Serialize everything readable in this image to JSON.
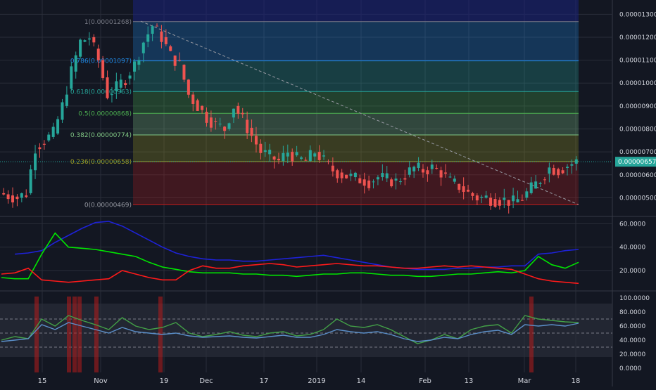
{
  "chart_data": [
    {
      "type": "candlestick",
      "title": "",
      "xlabel": "",
      "ylabel": "",
      "ylim": [
        4.4e-06,
        1.35e-05
      ],
      "y_ticks": [
        "0.00001300",
        "0.00001200",
        "0.00001100",
        "0.00001000",
        "0.00000900",
        "0.00000800",
        "0.00000700",
        "0.00000600",
        "0.00000500"
      ],
      "y_tick_values": [
        1.3e-05,
        1.2e-05,
        1.1e-05,
        1e-05,
        9e-06,
        8e-06,
        7e-06,
        6e-06,
        5e-06
      ],
      "x_ticks": [
        "15",
        "Nov",
        "19",
        "Dec",
        "17",
        "2019",
        "14",
        "Feb",
        "13",
        "Mar",
        "18"
      ],
      "last_price_label": "0.00000657",
      "last_price": 6.57e-06,
      "close_path": [
        5.2e-06,
        5.1e-06,
        5e-06,
        5.2e-06,
        7.2e-06,
        7.5e-06,
        7.8e-06,
        9e-06,
        1.05e-05,
        1.18e-05,
        1.2e-05,
        1.1e-05,
        9.5e-06,
        9.8e-06,
        1.02e-05,
        1.08e-05,
        1.18e-05,
        1.25e-05,
        1.2e-05,
        1.12e-05,
        1.08e-05,
        9.5e-06,
        9e-06,
        8.5e-06,
        8.2e-06,
        8e-06,
        9e-06,
        8.4e-06,
        7.7e-06,
        7e-06,
        6.8e-06,
        6.6e-06,
        7e-06,
        6.7e-06,
        6.6e-06,
        7e-06,
        6.6e-06,
        6.2e-06,
        6e-06,
        5.9e-06,
        5.8e-06,
        5.7e-06,
        5.9e-06,
        5.8e-06,
        5.7e-06,
        6e-06,
        6.3e-06,
        6.2e-06,
        6.3e-06,
        6.1e-06,
        5.7e-06,
        5.5e-06,
        5.2e-06,
        5e-06,
        5e-06,
        4.9e-06,
        4.9e-06,
        4.8e-06,
        5e-06,
        5.4e-06,
        5.8e-06,
        6.3e-06,
        6.2e-06,
        6.4e-06,
        6.57e-06
      ],
      "fibonacci": [
        {
          "label": "1(0.00001268)",
          "value": 1.268e-05,
          "fill": "#787b86"
        },
        {
          "label": "0.786(0.00001097)",
          "value": 1.097e-05,
          "fill": "#1e88e5"
        },
        {
          "label": "0.618(0.00000963)",
          "value": 9.63e-06,
          "fill": "#26a69a"
        },
        {
          "label": "0.5(0.00000868)",
          "value": 8.68e-06,
          "fill": "#4caf50"
        },
        {
          "label": "0.382(0.00000774)",
          "value": 7.74e-06,
          "fill": "#81c784"
        },
        {
          "label": "0.236(0.00000658)",
          "value": 6.58e-06,
          "fill": "#9e9d24"
        },
        {
          "label": "0(0.00000469)",
          "value": 4.69e-06,
          "fill": "#b71c1c"
        }
      ],
      "colors": {
        "up": "#26a69a",
        "down": "#ef5350",
        "background": "#131722",
        "grid": "#2a2e39",
        "axis_text": "#d1d4dc"
      }
    },
    {
      "type": "line",
      "title": "",
      "ylim": [
        5,
        65
      ],
      "y_ticks": [
        "60.0000",
        "40.0000",
        "20.0000"
      ],
      "y_tick_values": [
        60,
        40,
        20
      ],
      "series": [
        {
          "color": "#1e22d8",
          "values": [
            null,
            34,
            35,
            37,
            44,
            50,
            56,
            61,
            62,
            58,
            52,
            46,
            40,
            35,
            32,
            30,
            29,
            29,
            28,
            28,
            29,
            30,
            31,
            32,
            33,
            31,
            29,
            27,
            25,
            23,
            22,
            21,
            21,
            21,
            22,
            22,
            23,
            23,
            24,
            24,
            34,
            35,
            37,
            38
          ]
        },
        {
          "color": "#00e600",
          "values": [
            14,
            13,
            13,
            34,
            52,
            40,
            39,
            38,
            36,
            34,
            32,
            27,
            23,
            21,
            19,
            18,
            18,
            18,
            17,
            17,
            16,
            16,
            15,
            16,
            17,
            17,
            18,
            18,
            17,
            16,
            16,
            15,
            15,
            16,
            17,
            17,
            18,
            19,
            18,
            20,
            32,
            25,
            22,
            27
          ]
        },
        {
          "color": "#ff1a1a",
          "values": [
            17,
            18,
            22,
            12,
            11,
            10,
            11,
            12,
            13,
            20,
            17,
            14,
            12,
            12,
            20,
            24,
            22,
            22,
            24,
            25,
            26,
            25,
            23,
            24,
            25,
            26,
            25,
            24,
            24,
            23,
            22,
            22,
            23,
            24,
            23,
            24,
            23,
            22,
            21,
            17,
            13,
            11,
            10,
            9
          ]
        }
      ]
    },
    {
      "type": "line",
      "title": "",
      "ylim": [
        0,
        100
      ],
      "y_ticks": [
        "100.0000",
        "80.0000",
        "60.0000",
        "40.0000",
        "20.0000",
        "0.0000"
      ],
      "y_tick_values": [
        100,
        80,
        60,
        40,
        20,
        0
      ],
      "bands": [
        30,
        50,
        70
      ],
      "series": [
        {
          "color": "#43a047",
          "values": [
            40,
            45,
            42,
            70,
            60,
            75,
            68,
            62,
            55,
            72,
            60,
            55,
            58,
            65,
            50,
            45,
            48,
            52,
            47,
            45,
            50,
            52,
            46,
            48,
            55,
            70,
            60,
            58,
            62,
            55,
            45,
            35,
            40,
            48,
            42,
            55,
            60,
            62,
            50,
            75,
            70,
            68,
            66,
            65
          ]
        },
        {
          "color": "#5b8fc9",
          "values": [
            38,
            40,
            42,
            62,
            55,
            65,
            60,
            55,
            50,
            58,
            52,
            50,
            48,
            50,
            46,
            44,
            45,
            46,
            44,
            43,
            45,
            47,
            44,
            44,
            48,
            55,
            52,
            50,
            52,
            48,
            42,
            38,
            40,
            44,
            42,
            48,
            52,
            54,
            48,
            62,
            60,
            62,
            60,
            64
          ]
        }
      ]
    }
  ]
}
